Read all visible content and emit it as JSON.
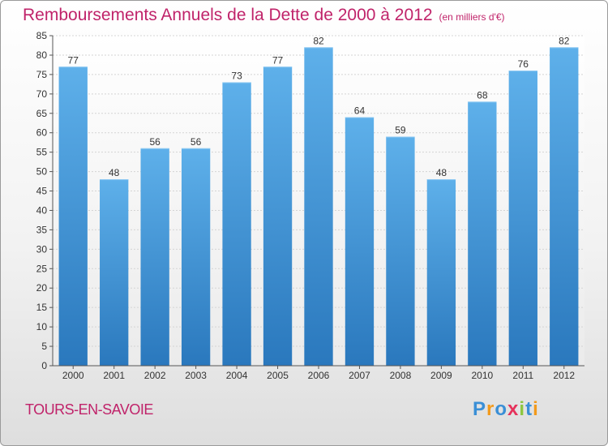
{
  "title": "Remboursements Annuels de la Dette de 2000 à 2012",
  "unit_note": "(en milliers d'€)",
  "town": "TOURS-EN-SAVOIE",
  "logo": {
    "text": "Proxiti",
    "letters": [
      {
        "ch": "P",
        "color": "#3a8fd6"
      },
      {
        "ch": "r",
        "color": "#f29a1b"
      },
      {
        "ch": "o",
        "color": "#3a8fd6"
      },
      {
        "ch": "x",
        "color": "#e6315b"
      },
      {
        "ch": "i",
        "color": "#8cc63f"
      },
      {
        "ch": "t",
        "color": "#3a8fd6"
      },
      {
        "ch": "i",
        "color": "#f29a1b"
      }
    ]
  },
  "colors": {
    "accent": "#c0236a",
    "bar_top": "#5eb0ea",
    "bar_bottom": "#2a78bd"
  },
  "chart_data": {
    "type": "bar",
    "categories": [
      "2000",
      "2001",
      "2002",
      "2003",
      "2004",
      "2005",
      "2006",
      "2007",
      "2008",
      "2009",
      "2010",
      "2011",
      "2012"
    ],
    "values": [
      77,
      48,
      56,
      56,
      73,
      77,
      82,
      64,
      59,
      48,
      68,
      76,
      82
    ],
    "ylim": [
      0,
      85
    ],
    "yticks": [
      0,
      5,
      10,
      15,
      20,
      25,
      30,
      35,
      40,
      45,
      50,
      55,
      60,
      65,
      70,
      75,
      80,
      85
    ],
    "grid": true,
    "data_labels": true
  }
}
